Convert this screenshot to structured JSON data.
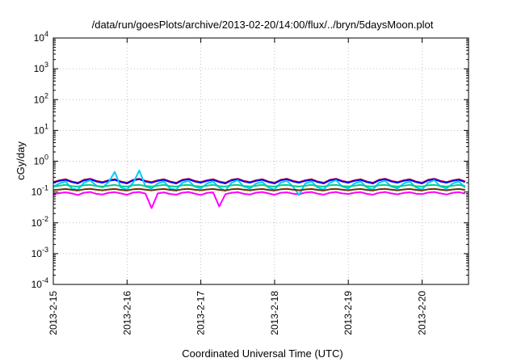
{
  "chart_data": {
    "type": "line",
    "title": "/data/run/goesPlots/archive/2013-02-20/14:00/flux/../bryn/5daysMoon.plot",
    "xlabel": "Coordinated Universal Time (UTC)",
    "ylabel": "cGy/day",
    "y_scale": "log",
    "ylim": [
      0.0001,
      10000
    ],
    "xlim": [
      "2013-02-15 00:00",
      "2013-02-20 14:00"
    ],
    "x_ticks": [
      "2013-2-15",
      "2013-2-16",
      "2013-2-17",
      "2013-2-18",
      "2013-2-19",
      "2013-2-20"
    ],
    "y_ticks": [
      {
        "base": "10",
        "exp": "-4"
      },
      {
        "base": "10",
        "exp": "-3"
      },
      {
        "base": "10",
        "exp": "-2"
      },
      {
        "base": "10",
        "exp": "-1"
      },
      {
        "base": "10",
        "exp": "0"
      },
      {
        "base": "10",
        "exp": "1"
      },
      {
        "base": "10",
        "exp": "2"
      },
      {
        "base": "10",
        "exp": "3"
      },
      {
        "base": "10",
        "exp": "4"
      }
    ],
    "grid": true,
    "sample_interval_hours": 2,
    "series": [
      {
        "color": "#ff00ff",
        "values": [
          0.085,
          0.092,
          0.098,
          0.09,
          0.08,
          0.095,
          0.1,
          0.087,
          0.083,
          0.094,
          0.099,
          0.09,
          0.081,
          0.096,
          0.1,
          0.088,
          0.03,
          0.09,
          0.097,
          0.086,
          0.082,
          0.095,
          0.1,
          0.089,
          0.08,
          0.093,
          0.098,
          0.034,
          0.085,
          0.094,
          0.099,
          0.087,
          0.083,
          0.095,
          0.1,
          0.09,
          0.081,
          0.094,
          0.098,
          0.088,
          0.084,
          0.096,
          0.1,
          0.088,
          0.082,
          0.094,
          0.1,
          0.09,
          0.086,
          0.095,
          0.099,
          0.087,
          0.082,
          0.094,
          0.1,
          0.09,
          0.084,
          0.093,
          0.098,
          0.088,
          0.085,
          0.096,
          0.1,
          0.09,
          0.083,
          0.094,
          0.099,
          0.088
        ]
      },
      {
        "color": "#ff0000",
        "values": [
          0.21,
          0.24,
          0.26,
          0.22,
          0.2,
          0.25,
          0.27,
          0.23,
          0.21,
          0.24,
          0.26,
          0.22,
          0.2,
          0.25,
          0.27,
          0.23,
          0.21,
          0.24,
          0.26,
          0.22,
          0.2,
          0.25,
          0.27,
          0.23,
          0.21,
          0.24,
          0.26,
          0.22,
          0.2,
          0.25,
          0.27,
          0.23,
          0.21,
          0.24,
          0.26,
          0.22,
          0.2,
          0.25,
          0.27,
          0.23,
          0.21,
          0.24,
          0.26,
          0.22,
          0.2,
          0.25,
          0.27,
          0.23,
          0.21,
          0.24,
          0.26,
          0.22,
          0.2,
          0.25,
          0.27,
          0.23,
          0.21,
          0.24,
          0.26,
          0.22,
          0.2,
          0.25,
          0.27,
          0.23,
          0.21,
          0.24,
          0.26,
          0.22
        ]
      },
      {
        "color": "#0000ff",
        "values": [
          0.2,
          0.23,
          0.25,
          0.21,
          0.19,
          0.24,
          0.26,
          0.22,
          0.2,
          0.23,
          0.25,
          0.21,
          0.19,
          0.24,
          0.26,
          0.22,
          0.2,
          0.23,
          0.25,
          0.21,
          0.19,
          0.24,
          0.26,
          0.22,
          0.2,
          0.23,
          0.25,
          0.21,
          0.19,
          0.24,
          0.26,
          0.22,
          0.2,
          0.23,
          0.25,
          0.21,
          0.19,
          0.24,
          0.26,
          0.22,
          0.2,
          0.23,
          0.25,
          0.21,
          0.19,
          0.24,
          0.26,
          0.22,
          0.2,
          0.23,
          0.25,
          0.21,
          0.19,
          0.24,
          0.26,
          0.22,
          0.2,
          0.23,
          0.25,
          0.21,
          0.19,
          0.24,
          0.26,
          0.22,
          0.2,
          0.23,
          0.25,
          0.21
        ]
      },
      {
        "color": "#00ccff",
        "values": [
          0.15,
          0.19,
          0.22,
          0.13,
          0.12,
          0.2,
          0.24,
          0.16,
          0.14,
          0.21,
          0.45,
          0.14,
          0.12,
          0.2,
          0.5,
          0.15,
          0.13,
          0.19,
          0.22,
          0.13,
          0.12,
          0.2,
          0.23,
          0.15,
          0.13,
          0.19,
          0.22,
          0.14,
          0.11,
          0.2,
          0.24,
          0.15,
          0.13,
          0.19,
          0.21,
          0.14,
          0.12,
          0.2,
          0.23,
          0.15,
          0.08,
          0.19,
          0.22,
          0.14,
          0.12,
          0.2,
          0.24,
          0.15,
          0.13,
          0.19,
          0.22,
          0.14,
          0.12,
          0.2,
          0.23,
          0.15,
          0.13,
          0.19,
          0.22,
          0.14,
          0.12,
          0.2,
          0.24,
          0.15,
          0.13,
          0.19,
          0.22,
          0.14
        ]
      },
      {
        "color": "#00cc88",
        "values": [
          0.15,
          0.16,
          0.17,
          0.155,
          0.15,
          0.165,
          0.17,
          0.158,
          0.15,
          0.16,
          0.17,
          0.155,
          0.15,
          0.165,
          0.17,
          0.158,
          0.15,
          0.16,
          0.17,
          0.155,
          0.15,
          0.165,
          0.17,
          0.158,
          0.15,
          0.16,
          0.17,
          0.155,
          0.15,
          0.165,
          0.17,
          0.158,
          0.15,
          0.16,
          0.17,
          0.155,
          0.15,
          0.165,
          0.17,
          0.158,
          0.15,
          0.16,
          0.17,
          0.155,
          0.15,
          0.165,
          0.17,
          0.158,
          0.15,
          0.16,
          0.17,
          0.155,
          0.15,
          0.165,
          0.17,
          0.158,
          0.15,
          0.16,
          0.17,
          0.155,
          0.15,
          0.165,
          0.17,
          0.158,
          0.15,
          0.16,
          0.17,
          0.155
        ]
      },
      {
        "color": "#663300",
        "values": [
          0.115,
          0.12,
          0.125,
          0.118,
          0.112,
          0.122,
          0.126,
          0.119,
          0.114,
          0.121,
          0.125,
          0.117,
          0.112,
          0.122,
          0.126,
          0.119,
          0.114,
          0.121,
          0.125,
          0.117,
          0.112,
          0.122,
          0.126,
          0.119,
          0.114,
          0.121,
          0.125,
          0.117,
          0.112,
          0.122,
          0.126,
          0.119,
          0.114,
          0.121,
          0.125,
          0.117,
          0.112,
          0.122,
          0.126,
          0.119,
          0.114,
          0.121,
          0.125,
          0.117,
          0.112,
          0.122,
          0.126,
          0.119,
          0.114,
          0.121,
          0.125,
          0.117,
          0.112,
          0.122,
          0.126,
          0.119,
          0.114,
          0.121,
          0.125,
          0.117,
          0.112,
          0.122,
          0.126,
          0.119,
          0.114,
          0.121,
          0.125,
          0.117
        ]
      }
    ]
  }
}
